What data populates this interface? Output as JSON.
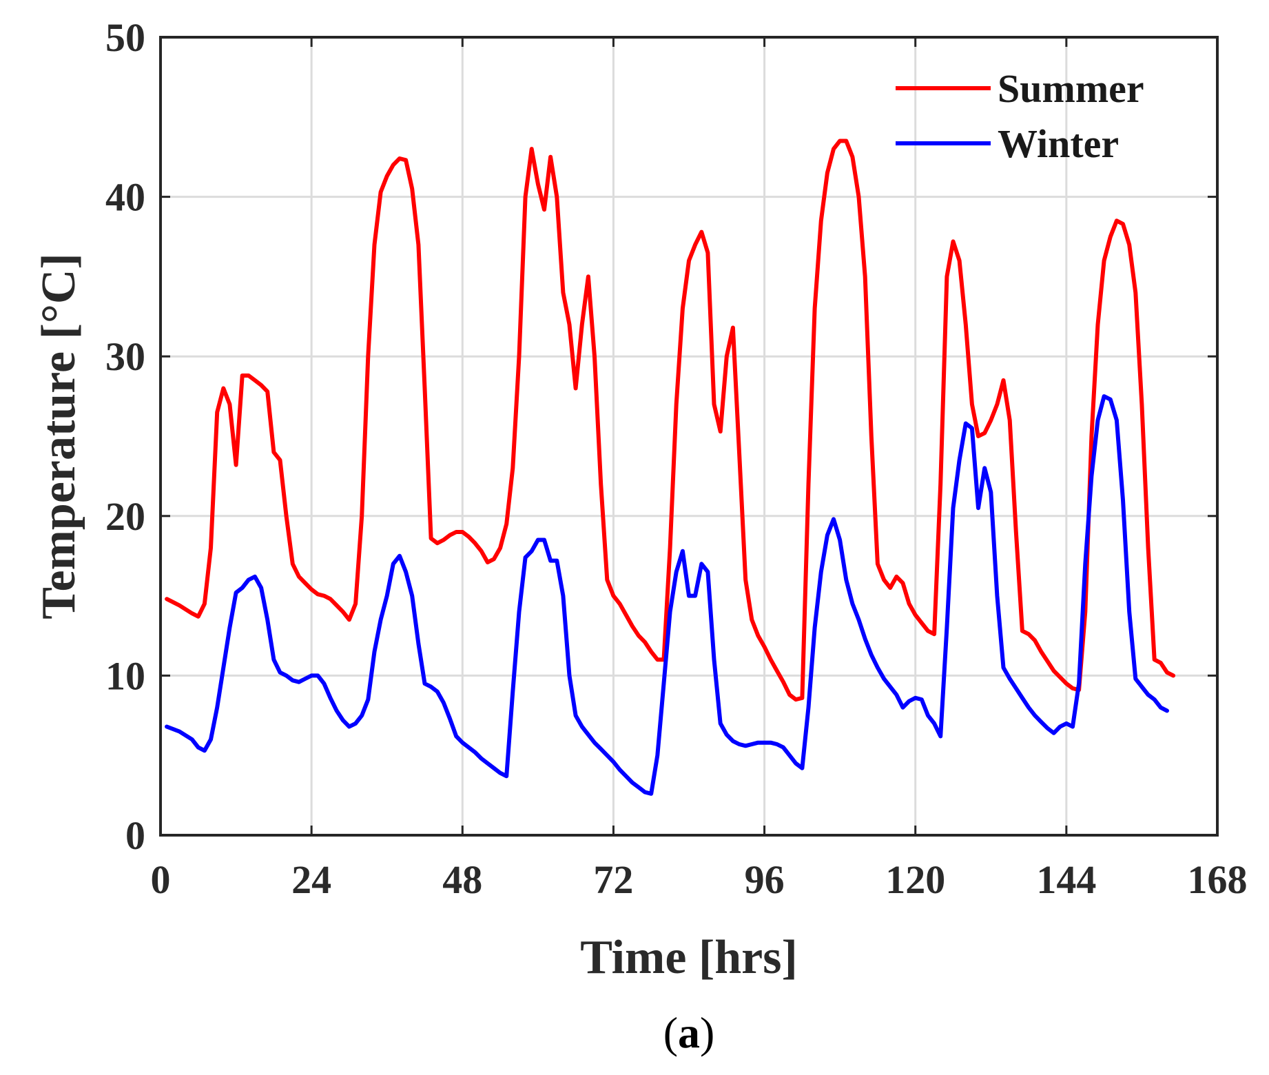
{
  "chart_data": {
    "type": "line",
    "title": "",
    "xlabel": "Time [hrs]",
    "ylabel": "Temperature [°C]",
    "xlim": [
      0,
      168
    ],
    "ylim": [
      0,
      50
    ],
    "xticks": [
      0,
      24,
      48,
      72,
      96,
      120,
      144,
      168
    ],
    "yticks": [
      0,
      10,
      20,
      30,
      40,
      50
    ],
    "grid": true,
    "legend_position": "top-right",
    "series": [
      {
        "name": "Summer",
        "color": "#ff0000",
        "points": [
          [
            1,
            14.8
          ],
          [
            3,
            14.4
          ],
          [
            5,
            13.9
          ],
          [
            6,
            13.7
          ],
          [
            7,
            14.5
          ],
          [
            8,
            18
          ],
          [
            9,
            26.5
          ],
          [
            10,
            28
          ],
          [
            11,
            27
          ],
          [
            12,
            23.2
          ],
          [
            13,
            28.8
          ],
          [
            14,
            28.8
          ],
          [
            15,
            28.5
          ],
          [
            16,
            28.2
          ],
          [
            17,
            27.8
          ],
          [
            18,
            24
          ],
          [
            19,
            23.5
          ],
          [
            20,
            20
          ],
          [
            21,
            17
          ],
          [
            22,
            16.2
          ],
          [
            23,
            15.8
          ],
          [
            24,
            15.4
          ],
          [
            25,
            15.1
          ],
          [
            26,
            15
          ],
          [
            27,
            14.8
          ],
          [
            28,
            14.4
          ],
          [
            29,
            14
          ],
          [
            30,
            13.5
          ],
          [
            31,
            14.5
          ],
          [
            32,
            20
          ],
          [
            33,
            30
          ],
          [
            34,
            37
          ],
          [
            35,
            40.3
          ],
          [
            36,
            41.3
          ],
          [
            37,
            42
          ],
          [
            38,
            42.4
          ],
          [
            39,
            42.3
          ],
          [
            40,
            40.5
          ],
          [
            41,
            37
          ],
          [
            42,
            28
          ],
          [
            43,
            18.6
          ],
          [
            44,
            18.3
          ],
          [
            45,
            18.5
          ],
          [
            46,
            18.8
          ],
          [
            47,
            19
          ],
          [
            48,
            19
          ],
          [
            49,
            18.7
          ],
          [
            50,
            18.3
          ],
          [
            51,
            17.8
          ],
          [
            52,
            17.1
          ],
          [
            53,
            17.3
          ],
          [
            54,
            18
          ],
          [
            55,
            19.5
          ],
          [
            56,
            23
          ],
          [
            57,
            30
          ],
          [
            58,
            40
          ],
          [
            59,
            43
          ],
          [
            60,
            40.8
          ],
          [
            61,
            39.2
          ],
          [
            62,
            42.5
          ],
          [
            63,
            40
          ],
          [
            64,
            34
          ],
          [
            65,
            32
          ],
          [
            66,
            28
          ],
          [
            67,
            32
          ],
          [
            68,
            35
          ],
          [
            69,
            30
          ],
          [
            70,
            22
          ],
          [
            71,
            16
          ],
          [
            72,
            15
          ],
          [
            73,
            14.5
          ],
          [
            74,
            13.8
          ],
          [
            75,
            13.1
          ],
          [
            76,
            12.5
          ],
          [
            77,
            12.1
          ],
          [
            78,
            11.5
          ],
          [
            79,
            11
          ],
          [
            80,
            11
          ],
          [
            81,
            18
          ],
          [
            82,
            27
          ],
          [
            83,
            33
          ],
          [
            84,
            36
          ],
          [
            85,
            37
          ],
          [
            86,
            37.8
          ],
          [
            87,
            36.5
          ],
          [
            88,
            27
          ],
          [
            89,
            25.3
          ],
          [
            90,
            30
          ],
          [
            91,
            31.8
          ],
          [
            92,
            24
          ],
          [
            93,
            16
          ],
          [
            94,
            13.5
          ],
          [
            95,
            12.5
          ],
          [
            96,
            11.8
          ],
          [
            97,
            11
          ],
          [
            98,
            10.3
          ],
          [
            99,
            9.6
          ],
          [
            100,
            8.8
          ],
          [
            101,
            8.5
          ],
          [
            102,
            8.6
          ],
          [
            103,
            22
          ],
          [
            104,
            33
          ],
          [
            105,
            38.5
          ],
          [
            106,
            41.5
          ],
          [
            107,
            43
          ],
          [
            108,
            43.5
          ],
          [
            109,
            43.5
          ],
          [
            110,
            42.5
          ],
          [
            111,
            40
          ],
          [
            112,
            35
          ],
          [
            113,
            25
          ],
          [
            114,
            17
          ],
          [
            115,
            16
          ],
          [
            116,
            15.5
          ],
          [
            117,
            16.2
          ],
          [
            118,
            15.8
          ],
          [
            119,
            14.5
          ],
          [
            120,
            13.8
          ],
          [
            121,
            13.3
          ],
          [
            122,
            12.8
          ],
          [
            123,
            12.6
          ],
          [
            124,
            22
          ],
          [
            125,
            35
          ],
          [
            126,
            37.2
          ],
          [
            127,
            36
          ],
          [
            128,
            32
          ],
          [
            129,
            27
          ],
          [
            130,
            25
          ],
          [
            131,
            25.2
          ],
          [
            132,
            26
          ],
          [
            133,
            27
          ],
          [
            134,
            28.5
          ],
          [
            135,
            26
          ],
          [
            136,
            19
          ],
          [
            137,
            12.8
          ],
          [
            138,
            12.6
          ],
          [
            139,
            12.2
          ],
          [
            140,
            11.5
          ],
          [
            141,
            10.9
          ],
          [
            142,
            10.3
          ],
          [
            143,
            9.9
          ],
          [
            144,
            9.5
          ],
          [
            145,
            9.2
          ],
          [
            146,
            9.1
          ],
          [
            147,
            14
          ],
          [
            148,
            25
          ],
          [
            149,
            32
          ],
          [
            150,
            36
          ],
          [
            151,
            37.5
          ],
          [
            152,
            38.5
          ],
          [
            153,
            38.3
          ],
          [
            154,
            37
          ],
          [
            155,
            34
          ],
          [
            156,
            27
          ],
          [
            157,
            18
          ],
          [
            158,
            11
          ],
          [
            159,
            10.8
          ],
          [
            160,
            10.2
          ],
          [
            161,
            10
          ]
        ]
      },
      {
        "name": "Winter",
        "color": "#0000ff",
        "points": [
          [
            1,
            6.8
          ],
          [
            3,
            6.5
          ],
          [
            5,
            6
          ],
          [
            6,
            5.5
          ],
          [
            7,
            5.3
          ],
          [
            8,
            6
          ],
          [
            9,
            8
          ],
          [
            10,
            10.5
          ],
          [
            11,
            13
          ],
          [
            12,
            15.2
          ],
          [
            13,
            15.5
          ],
          [
            14,
            16
          ],
          [
            15,
            16.2
          ],
          [
            16,
            15.5
          ],
          [
            17,
            13.5
          ],
          [
            18,
            11
          ],
          [
            19,
            10.2
          ],
          [
            20,
            10
          ],
          [
            21,
            9.7
          ],
          [
            22,
            9.6
          ],
          [
            23,
            9.8
          ],
          [
            24,
            10
          ],
          [
            25,
            10
          ],
          [
            26,
            9.5
          ],
          [
            27,
            8.6
          ],
          [
            28,
            7.8
          ],
          [
            29,
            7.2
          ],
          [
            30,
            6.8
          ],
          [
            31,
            7
          ],
          [
            32,
            7.5
          ],
          [
            33,
            8.5
          ],
          [
            34,
            11.5
          ],
          [
            35,
            13.5
          ],
          [
            36,
            15
          ],
          [
            37,
            17
          ],
          [
            38,
            17.5
          ],
          [
            39,
            16.5
          ],
          [
            40,
            15
          ],
          [
            41,
            12
          ],
          [
            42,
            9.5
          ],
          [
            43,
            9.3
          ],
          [
            44,
            9
          ],
          [
            45,
            8.3
          ],
          [
            46,
            7.3
          ],
          [
            47,
            6.2
          ],
          [
            48,
            5.8
          ],
          [
            49,
            5.5
          ],
          [
            50,
            5.2
          ],
          [
            51,
            4.8
          ],
          [
            52,
            4.5
          ],
          [
            53,
            4.2
          ],
          [
            54,
            3.9
          ],
          [
            55,
            3.7
          ],
          [
            56,
            9
          ],
          [
            57,
            14
          ],
          [
            58,
            17.4
          ],
          [
            59,
            17.8
          ],
          [
            60,
            18.5
          ],
          [
            61,
            18.5
          ],
          [
            62,
            17.2
          ],
          [
            63,
            17.2
          ],
          [
            64,
            15
          ],
          [
            65,
            10
          ],
          [
            66,
            7.5
          ],
          [
            67,
            6.8
          ],
          [
            68,
            6.3
          ],
          [
            69,
            5.8
          ],
          [
            70,
            5.4
          ],
          [
            71,
            5
          ],
          [
            72,
            4.6
          ],
          [
            73,
            4.1
          ],
          [
            74,
            3.7
          ],
          [
            75,
            3.3
          ],
          [
            76,
            3
          ],
          [
            77,
            2.7
          ],
          [
            78,
            2.6
          ],
          [
            79,
            5
          ],
          [
            80,
            9.5
          ],
          [
            81,
            14
          ],
          [
            82,
            16.5
          ],
          [
            83,
            17.8
          ],
          [
            84,
            15
          ],
          [
            85,
            15
          ],
          [
            86,
            17
          ],
          [
            87,
            16.5
          ],
          [
            88,
            11
          ],
          [
            89,
            7
          ],
          [
            90,
            6.3
          ],
          [
            91,
            5.9
          ],
          [
            92,
            5.7
          ],
          [
            93,
            5.6
          ],
          [
            94,
            5.7
          ],
          [
            95,
            5.8
          ],
          [
            96,
            5.8
          ],
          [
            97,
            5.8
          ],
          [
            98,
            5.7
          ],
          [
            99,
            5.5
          ],
          [
            100,
            5
          ],
          [
            101,
            4.5
          ],
          [
            102,
            4.2
          ],
          [
            103,
            8
          ],
          [
            104,
            13
          ],
          [
            105,
            16.5
          ],
          [
            106,
            18.8
          ],
          [
            107,
            19.8
          ],
          [
            108,
            18.5
          ],
          [
            109,
            16
          ],
          [
            110,
            14.5
          ],
          [
            111,
            13.5
          ],
          [
            112,
            12.3
          ],
          [
            113,
            11.3
          ],
          [
            114,
            10.5
          ],
          [
            115,
            9.8
          ],
          [
            116,
            9.3
          ],
          [
            117,
            8.8
          ],
          [
            118,
            8
          ],
          [
            119,
            8.4
          ],
          [
            120,
            8.6
          ],
          [
            121,
            8.5
          ],
          [
            122,
            7.5
          ],
          [
            123,
            7
          ],
          [
            124,
            6.2
          ],
          [
            125,
            13
          ],
          [
            126,
            20.5
          ],
          [
            127,
            23.5
          ],
          [
            128,
            25.8
          ],
          [
            129,
            25.5
          ],
          [
            130,
            20.5
          ],
          [
            131,
            23
          ],
          [
            132,
            21.5
          ],
          [
            133,
            15
          ],
          [
            134,
            10.5
          ],
          [
            135,
            9.8
          ],
          [
            136,
            9.2
          ],
          [
            137,
            8.6
          ],
          [
            138,
            8
          ],
          [
            139,
            7.5
          ],
          [
            140,
            7.1
          ],
          [
            141,
            6.7
          ],
          [
            142,
            6.4
          ],
          [
            143,
            6.8
          ],
          [
            144,
            7
          ],
          [
            145,
            6.8
          ],
          [
            146,
            9.5
          ],
          [
            147,
            17
          ],
          [
            148,
            22.5
          ],
          [
            149,
            26
          ],
          [
            150,
            27.5
          ],
          [
            151,
            27.3
          ],
          [
            152,
            26
          ],
          [
            153,
            21
          ],
          [
            154,
            14
          ],
          [
            155,
            9.8
          ],
          [
            156,
            9.3
          ],
          [
            157,
            8.8
          ],
          [
            158,
            8.5
          ],
          [
            159,
            8
          ],
          [
            160,
            7.8
          ]
        ]
      }
    ]
  },
  "caption": {
    "open": "(",
    "letter": "a",
    "close": ")"
  }
}
